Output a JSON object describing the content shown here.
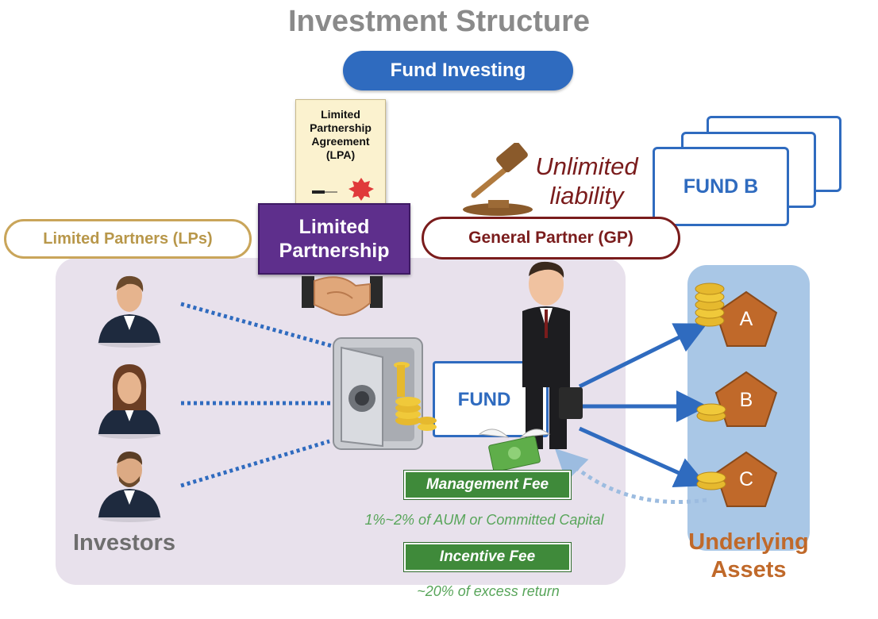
{
  "title": "Investment Structure",
  "fund_investing_label": "Fund Investing",
  "lpa_document": {
    "text": "Limited Partnership Agreement (LPA)"
  },
  "limited_partnership_label": "Limited Partnership",
  "limited_partners_label": "Limited Partners (LPs)",
  "general_partner_label": "General Partner (GP)",
  "unlimited_liability_label": "Unlimited liability",
  "fund_b_label": "FUND B",
  "fund_label": "FUND",
  "investors_label": "Investors",
  "underlying_assets_label": "Underlying Assets",
  "assets": [
    "A",
    "B",
    "C"
  ],
  "management_fee": {
    "label": "Management Fee",
    "note": "1%~2% of AUM or Committed Capital"
  },
  "incentive_fee": {
    "label": "Incentive Fee",
    "note": "~20% of excess return"
  },
  "colors": {
    "fund_blue": "#2f6bbf",
    "lp_gold": "#c9a55a",
    "gp_maroon": "#7a1c1c",
    "partnership_purple": "#5e2f8c",
    "fee_green": "#3f8a3a",
    "asset_orange": "#c0692a"
  },
  "icons": [
    "lpa-document-icon",
    "gavel-icon",
    "handshake-icon",
    "investor-avatar-icon",
    "safe-icon",
    "businessman-icon",
    "money-wings-icon",
    "coins-icon",
    "pentagon-icon"
  ]
}
